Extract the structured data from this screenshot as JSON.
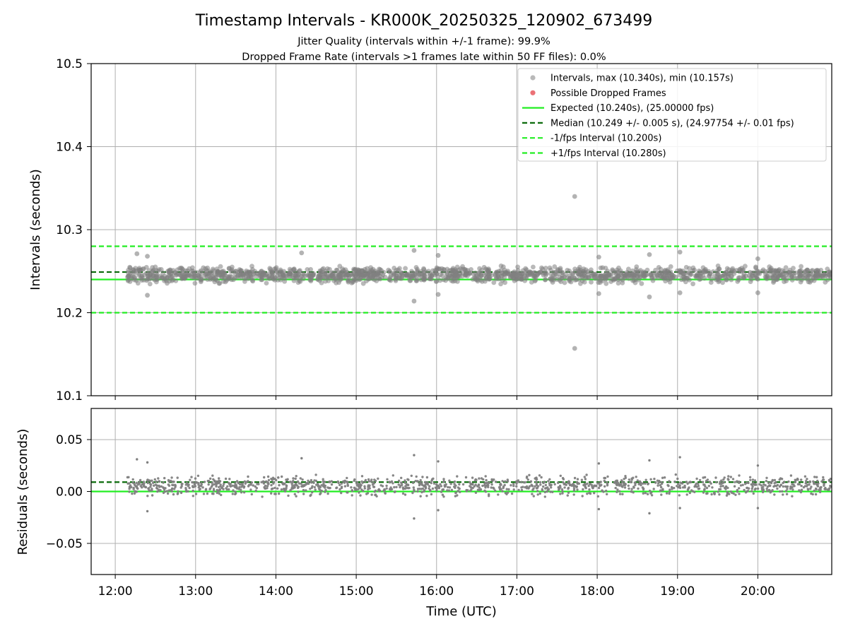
{
  "chart_data": {
    "type": "scatter",
    "title": "Timestamp Intervals - KR000K_20250325_120902_673499",
    "subtitle_lines": [
      "Jitter Quality (intervals within +/-1 frame): 99.9%",
      "Dropped Frame Rate (intervals >1 frames late within 50 FF files): 0.0%"
    ],
    "xlabel": "Time (UTC)",
    "x_ticks": [
      "12:00",
      "13:00",
      "14:00",
      "15:00",
      "16:00",
      "17:00",
      "18:00",
      "19:00",
      "20:00"
    ],
    "x_tick_hours": [
      12,
      13,
      14,
      15,
      16,
      17,
      18,
      19,
      20
    ],
    "xlim_hours": [
      11.7,
      20.92
    ],
    "x_data_start_hours": 12.15,
    "x_data_end_hours": 20.92,
    "grid": true,
    "legend_position": "top-right",
    "colors": {
      "points": "#808080",
      "dropped": "#e8585e",
      "expected": "#22ee22",
      "median": "#0b6b0b",
      "bounds": "#22ee22",
      "grid": "#b0b0b0"
    },
    "panels": [
      {
        "id": "intervals",
        "ylabel": "Intervals (seconds)",
        "ylim": [
          10.1,
          10.5
        ],
        "y_ticks": [
          "10.1",
          "10.2",
          "10.3",
          "10.4",
          "10.5"
        ],
        "y_tick_values": [
          10.1,
          10.2,
          10.3,
          10.4,
          10.5
        ],
        "baseline": 10.24,
        "band_center": 10.2455,
        "band_halfwidth": 0.011,
        "outliers": [
          {
            "x": 12.27,
            "y": 10.271
          },
          {
            "x": 12.4,
            "y": 10.268
          },
          {
            "x": 12.4,
            "y": 10.221
          },
          {
            "x": 14.32,
            "y": 10.272
          },
          {
            "x": 15.72,
            "y": 10.275
          },
          {
            "x": 15.72,
            "y": 10.214
          },
          {
            "x": 16.02,
            "y": 10.269
          },
          {
            "x": 16.02,
            "y": 10.222
          },
          {
            "x": 17.72,
            "y": 10.34
          },
          {
            "x": 17.72,
            "y": 10.157
          },
          {
            "x": 18.02,
            "y": 10.267
          },
          {
            "x": 18.02,
            "y": 10.223
          },
          {
            "x": 18.65,
            "y": 10.27
          },
          {
            "x": 18.65,
            "y": 10.219
          },
          {
            "x": 19.03,
            "y": 10.273
          },
          {
            "x": 19.03,
            "y": 10.224
          },
          {
            "x": 20.0,
            "y": 10.265
          },
          {
            "x": 20.0,
            "y": 10.224
          }
        ],
        "reference_lines": [
          {
            "label": "Expected (10.240s), (25.00000 fps)",
            "y": 10.24,
            "style": "solid",
            "color_key": "expected"
          },
          {
            "label": "Median (10.249 +/- 0.005 s), (24.97754 +/- 0.01 fps)",
            "y": 10.249,
            "style": "dashed",
            "color_key": "median"
          },
          {
            "label": "-1/fps Interval (10.200s)",
            "y": 10.2,
            "style": "dashed",
            "color_key": "bounds"
          },
          {
            "label": "+1/fps Interval (10.280s)",
            "y": 10.28,
            "style": "dashed",
            "color_key": "bounds"
          }
        ],
        "legend": [
          {
            "label": "Intervals, max (10.340s), min (10.157s)",
            "marker": "point",
            "color_key": "points"
          },
          {
            "label": "Possible Dropped Frames",
            "marker": "point",
            "color_key": "dropped"
          },
          {
            "label": "Expected (10.240s), (25.00000 fps)",
            "marker": "solid",
            "color_key": "expected"
          },
          {
            "label": "Median (10.249 +/- 0.005 s), (24.97754 +/- 0.01 fps)",
            "marker": "dashed",
            "color_key": "median"
          },
          {
            "label": "-1/fps Interval (10.200s)",
            "marker": "dashed",
            "color_key": "bounds"
          },
          {
            "label": "+1/fps Interval (10.280s)",
            "marker": "dashed",
            "color_key": "bounds"
          }
        ],
        "stats": {
          "max": 10.34,
          "min": 10.157,
          "median": 10.249,
          "spread": 0.005,
          "expected": 10.24,
          "fps": 25.0,
          "median_fps": 24.97754
        }
      },
      {
        "id": "residuals",
        "ylabel": "Residuals (seconds)",
        "ylim": [
          -0.08,
          0.08
        ],
        "y_ticks": [
          "−0.05",
          "0.00",
          "0.05"
        ],
        "y_tick_values": [
          -0.05,
          0.0,
          0.05
        ],
        "baseline": 0.0,
        "median": 0.009,
        "band_center": 0.0055,
        "band_halfwidth": 0.011,
        "outliers": [
          {
            "x": 12.27,
            "y": 0.031
          },
          {
            "x": 12.4,
            "y": 0.028
          },
          {
            "x": 12.4,
            "y": -0.019
          },
          {
            "x": 14.32,
            "y": 0.032
          },
          {
            "x": 15.72,
            "y": 0.035
          },
          {
            "x": 15.72,
            "y": -0.026
          },
          {
            "x": 16.02,
            "y": 0.029
          },
          {
            "x": 16.02,
            "y": -0.018
          },
          {
            "x": 18.02,
            "y": 0.027
          },
          {
            "x": 18.02,
            "y": -0.017
          },
          {
            "x": 18.65,
            "y": 0.03
          },
          {
            "x": 18.65,
            "y": -0.021
          },
          {
            "x": 19.03,
            "y": 0.033
          },
          {
            "x": 19.03,
            "y": -0.016
          },
          {
            "x": 20.0,
            "y": 0.025
          },
          {
            "x": 20.0,
            "y": -0.016
          }
        ]
      }
    ]
  }
}
